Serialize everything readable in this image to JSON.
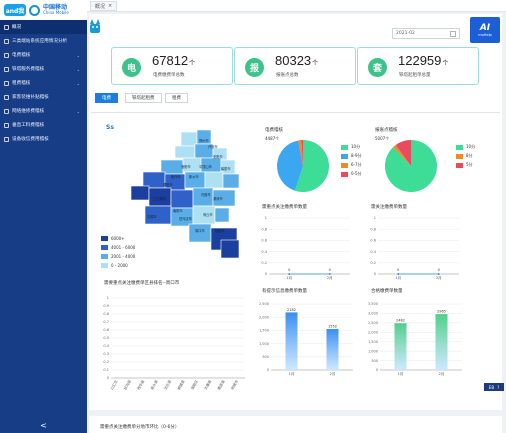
{
  "logo": {
    "badge": "and我",
    "brand_cn": "中国移动",
    "brand_en": "China Mobile"
  },
  "sidebar": {
    "items": [
      {
        "label": "概况",
        "active": true,
        "arrow": false
      },
      {
        "label": "三类端站系统应用情况分析",
        "active": false,
        "arrow": false
      },
      {
        "label": "电费稽核",
        "active": false,
        "arrow": true
      },
      {
        "label": "铁塔服务费稽核",
        "active": false,
        "arrow": true
      },
      {
        "label": "租费稽核",
        "active": false,
        "arrow": true
      },
      {
        "label": "家客装维补贴稽核",
        "active": false,
        "arrow": false
      },
      {
        "label": "网络维修费稽核",
        "active": false,
        "arrow": true
      },
      {
        "label": "垂直工料费稽核",
        "active": false,
        "arrow": false
      },
      {
        "label": "设备收信费用稽核",
        "active": false,
        "arrow": false
      }
    ],
    "collapse_glyph": "<"
  },
  "topbar": {
    "tab_label": "概况",
    "tab_close": "×"
  },
  "header": {
    "date_value": "2021-02",
    "ai_title": "AI",
    "ai_sub": "moHelp"
  },
  "stats": [
    {
      "icon": "电",
      "value": "67812",
      "unit": "个",
      "label": "电费缴费单总数",
      "color": "#3cc28a"
    },
    {
      "icon": "报",
      "value": "80323",
      "unit": "个",
      "label": "报账点总数",
      "color": "#3cc28a"
    },
    {
      "icon": "套",
      "value": "122959",
      "unit": "个",
      "label": "铁塔起租单总量",
      "color": "#3cc28a"
    }
  ],
  "business_tabs": [
    {
      "label": "电费",
      "active": true
    },
    {
      "label": "铁塔起租费",
      "active": false
    },
    {
      "label": "租费",
      "active": false
    }
  ],
  "map": {
    "logo": "Ss",
    "legend": [
      {
        "label": "6000+",
        "color": "#1a3f9e"
      },
      {
        "label": "4001 - 6000",
        "color": "#2f62c8"
      },
      {
        "label": "2001 - 4000",
        "color": "#5aaee8"
      },
      {
        "label": "0 - 2000",
        "color": "#aee0f4"
      }
    ],
    "cities": [
      "郑州市",
      "开封市",
      "洛阳市",
      "平顶山市",
      "安阳市",
      "鹤壁市",
      "新乡市",
      "焦作市",
      "濮阳市",
      "许昌市",
      "漯河市",
      "三门峡市",
      "南阳市",
      "商丘市",
      "信阳市",
      "周口市",
      "驻马店市",
      "济源市"
    ]
  },
  "panels": {
    "pie1": {
      "title": "电费稽核",
      "count": "4487个"
    },
    "pie2": {
      "title": "报账点稽核",
      "count": "5007个"
    },
    "line1": {
      "title": "需重点关注缴费单数量"
    },
    "line2": {
      "title": "需关注缴费单数量"
    },
    "rank": {
      "title": "需要重点关注缴费单区县排名--周口市"
    },
    "bar1": {
      "title": "有提示信息缴费单数量"
    },
    "bar2": {
      "title": "合格缴费单数量"
    }
  },
  "chart_data": [
    {
      "type": "pie",
      "title": "电费稽核",
      "categories": [
        "10分",
        "8-9分",
        "6-7分",
        "0-5分"
      ],
      "values": [
        55,
        42,
        2,
        1
      ],
      "colors": [
        "#3ddc97",
        "#3aa7f0",
        "#f08a24",
        "#e84a5f"
      ]
    },
    {
      "type": "pie",
      "title": "报账点稽核",
      "categories": [
        "10分",
        "8分",
        "5分"
      ],
      "values": [
        88,
        2,
        10
      ],
      "colors": [
        "#3ddc97",
        "#f08a24",
        "#e84a5f"
      ]
    },
    {
      "type": "line",
      "title": "需重点关注缴费单数量",
      "categories": [
        "1月",
        "2月"
      ],
      "values": [
        0,
        0
      ],
      "ylim": [
        0,
        1
      ],
      "yticks": [
        "0",
        "0.2",
        "0.4",
        "0.6",
        "0.8",
        "1"
      ]
    },
    {
      "type": "line",
      "title": "需关注缴费单数量",
      "categories": [
        "1月",
        "2月"
      ],
      "values": [
        0,
        0
      ],
      "ylim": [
        0,
        1
      ],
      "yticks": [
        "0",
        "0.2",
        "0.4",
        "0.6",
        "0.8",
        "1"
      ]
    },
    {
      "type": "bar",
      "title": "需要重点关注缴费单区县排名--周口市",
      "categories": [
        "川汇区",
        "扶沟县",
        "西华县",
        "商水县",
        "沈丘县",
        "郸城县",
        "淮阳区",
        "太康县",
        "鹿邑县",
        "项城市"
      ],
      "values": [
        0,
        0,
        0,
        0,
        0,
        0,
        0,
        0,
        0,
        0
      ],
      "ylim": [
        0,
        1
      ],
      "yticks": [
        "0",
        "0.1",
        "0.2",
        "0.3",
        "0.4",
        "0.5",
        "0.6",
        "0.7",
        "0.8",
        "0.9",
        "1"
      ]
    },
    {
      "type": "bar",
      "title": "有提示信息缴费单数量",
      "categories": [
        "1月",
        "2月"
      ],
      "values": [
        2182,
        1552
      ],
      "ylim": [
        0,
        2500
      ],
      "yticks": [
        "0",
        "500",
        "1,000",
        "1,500",
        "2,000",
        "2,500"
      ],
      "color": "#3a8ff0"
    },
    {
      "type": "bar",
      "title": "合格缴费单数量",
      "categories": [
        "1月",
        "2月"
      ],
      "values": [
        2482,
        2965
      ],
      "ylim": [
        0,
        3500
      ],
      "yticks": [
        "0",
        "500",
        "1,000",
        "1,500",
        "2,000",
        "2,500",
        "3,000",
        "3,500"
      ],
      "color": "#4fd08a"
    }
  ],
  "float_button": {
    "label": "EB",
    "icon": "?"
  },
  "bottom": {
    "title": "需重点关注缴费单分地市环比（0-6分）"
  }
}
